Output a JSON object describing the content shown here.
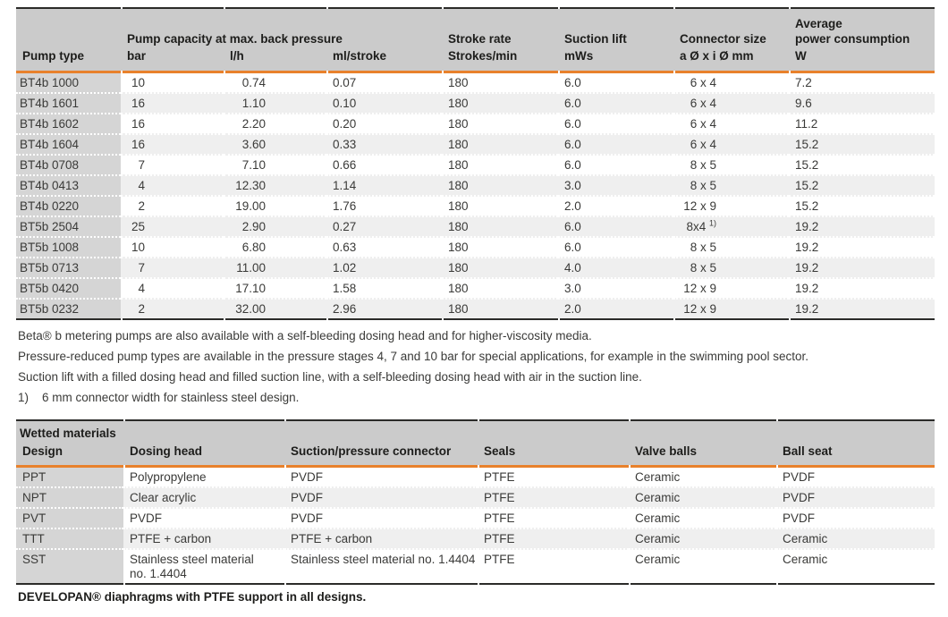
{
  "colors": {
    "accent_orange": "#e8812c",
    "rule_dark": "#2b2b29",
    "header_bg": "#cbcbcb",
    "first_col_bg": "#d5d5d5",
    "alt_row_bg": "#efefef"
  },
  "pump_table": {
    "group_header": "Pump capacity at max. back pressure",
    "columns": {
      "pump_type": "Pump type",
      "bar": "bar",
      "lh": "l/h",
      "ml": "ml/stroke",
      "stroke_rate": "Stroke rate",
      "strokes_min": "Strokes/min",
      "suction_lift": "Suction lift",
      "mws": "mWs",
      "connector": "Connector size",
      "connector_unit": "a Ø x i Ø mm",
      "avg_power_line1": "Average",
      "avg_power_line2": "power consumption",
      "watt": "W"
    },
    "rows": [
      {
        "type": "BT4b 1000",
        "bar": "10",
        "lh": "0.74",
        "ml": "0.07",
        "stroke": "180",
        "mws": "6.0",
        "conn": "6 x 4",
        "w": "7.2"
      },
      {
        "type": "BT4b 1601",
        "bar": "16",
        "lh": "1.10",
        "ml": "0.10",
        "stroke": "180",
        "mws": "6.0",
        "conn": "6 x 4",
        "w": "9.6"
      },
      {
        "type": "BT4b 1602",
        "bar": "16",
        "lh": "2.20",
        "ml": "0.20",
        "stroke": "180",
        "mws": "6.0",
        "conn": "6 x 4",
        "w": "11.2"
      },
      {
        "type": "BT4b 1604",
        "bar": "16",
        "lh": "3.60",
        "ml": "0.33",
        "stroke": "180",
        "mws": "6.0",
        "conn": "6 x 4",
        "w": "15.2"
      },
      {
        "type": "BT4b 0708",
        "bar": "7",
        "lh": "7.10",
        "ml": "0.66",
        "stroke": "180",
        "mws": "6.0",
        "conn": "8 x 5",
        "w": "15.2"
      },
      {
        "type": "BT4b 0413",
        "bar": "4",
        "lh": "12.30",
        "ml": "1.14",
        "stroke": "180",
        "mws": "3.0",
        "conn": "8 x 5",
        "w": "15.2"
      },
      {
        "type": "BT4b 0220",
        "bar": "2",
        "lh": "19.00",
        "ml": "1.76",
        "stroke": "180",
        "mws": "2.0",
        "conn": "12 x 9",
        "w": "15.2"
      },
      {
        "type": "BT5b 2504",
        "bar": "25",
        "lh": "2.90",
        "ml": "0.27",
        "stroke": "180",
        "mws": "6.0",
        "conn": "8x4 ",
        "conn_sup": "1)",
        "w": "19.2"
      },
      {
        "type": "BT5b 1008",
        "bar": "10",
        "lh": "6.80",
        "ml": "0.63",
        "stroke": "180",
        "mws": "6.0",
        "conn": "8 x 5",
        "w": "19.2"
      },
      {
        "type": "BT5b 0713",
        "bar": "7",
        "lh": "11.00",
        "ml": "1.02",
        "stroke": "180",
        "mws": "4.0",
        "conn": "8 x 5",
        "w": "19.2"
      },
      {
        "type": "BT5b 0420",
        "bar": "4",
        "lh": "17.10",
        "ml": "1.58",
        "stroke": "180",
        "mws": "3.0",
        "conn": "12 x 9",
        "w": "19.2"
      },
      {
        "type": "BT5b 0232",
        "bar": "2",
        "lh": "32.00",
        "ml": "2.96",
        "stroke": "180",
        "mws": "2.0",
        "conn": "12 x 9",
        "w": "19.2"
      }
    ]
  },
  "notes": [
    "Beta® b metering pumps are also available with a self-bleeding dosing head and for higher-viscosity media.",
    "Pressure-reduced pump types are available in the pressure stages 4, 7 and 10 bar for special applications, for example in the swimming pool sector.",
    "Suction lift with a filled dosing head and filled suction line, with a self-bleeding dosing head with air in the suction line."
  ],
  "footnote": {
    "marker": "1)",
    "text": "6 mm connector width for stainless steel design."
  },
  "materials_table": {
    "title": "Wetted materials",
    "columns": {
      "design": "Design",
      "dosing_head": "Dosing head",
      "connector": "Suction/pressure connector",
      "seals": "Seals",
      "valve_balls": "Valve balls",
      "ball_seat": "Ball seat"
    },
    "rows": [
      {
        "design": "PPT",
        "dosing_head": "Polypropylene",
        "connector": "PVDF",
        "seals": "PTFE",
        "valve_balls": "Ceramic",
        "ball_seat": "PVDF"
      },
      {
        "design": "NPT",
        "dosing_head": "Clear acrylic",
        "connector": "PVDF",
        "seals": "PTFE",
        "valve_balls": "Ceramic",
        "ball_seat": "PVDF"
      },
      {
        "design": "PVT",
        "dosing_head": "PVDF",
        "connector": "PVDF",
        "seals": "PTFE",
        "valve_balls": "Ceramic",
        "ball_seat": "PVDF"
      },
      {
        "design": "TTT",
        "dosing_head": "PTFE + carbon",
        "connector": "PTFE + carbon",
        "seals": "PTFE",
        "valve_balls": "Ceramic",
        "ball_seat": "Ceramic"
      },
      {
        "design": "SST",
        "dosing_head": "Stainless steel material no. 1.4404",
        "connector": "Stainless steel material no. 1.4404",
        "seals": "PTFE",
        "valve_balls": "Ceramic",
        "ball_seat": "Ceramic"
      }
    ]
  },
  "materials_note": "DEVELOPAN® diaphragms with PTFE support in all designs."
}
